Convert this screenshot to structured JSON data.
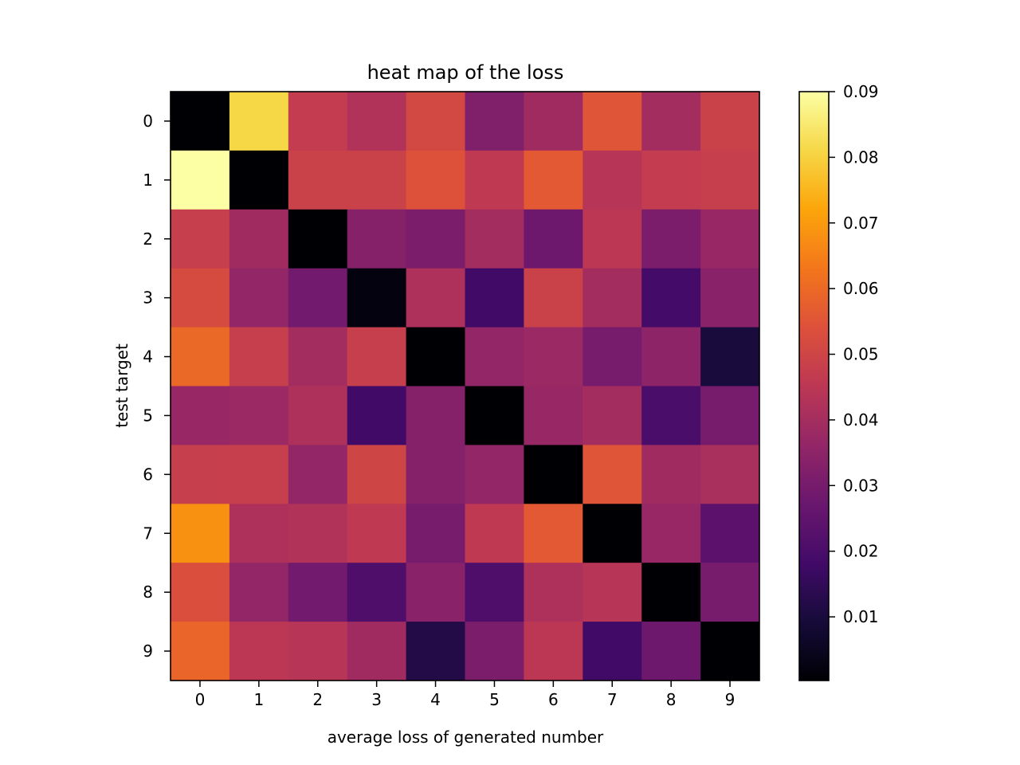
{
  "chart_data": {
    "type": "heatmap",
    "colormap": "inferno",
    "title": "heat map of the loss",
    "xlabel": "average loss of generated number",
    "ylabel": "test target",
    "x_categories": [
      "0",
      "1",
      "2",
      "3",
      "4",
      "5",
      "6",
      "7",
      "8",
      "9"
    ],
    "y_categories": [
      "0",
      "1",
      "2",
      "3",
      "4",
      "5",
      "6",
      "7",
      "8",
      "9"
    ],
    "color_range": [
      0.0003,
      0.09
    ],
    "colorbar_ticks": [
      0.01,
      0.02,
      0.03,
      0.04,
      0.05,
      0.06,
      0.07,
      0.08,
      0.09
    ],
    "colorbar_tick_labels": [
      "0.01",
      "0.02",
      "0.03",
      "0.04",
      "0.05",
      "0.06",
      "0.07",
      "0.08",
      "0.09"
    ],
    "matrix": [
      [
        0.0,
        0.081,
        0.047,
        0.043,
        0.051,
        0.032,
        0.039,
        0.055,
        0.04,
        0.049
      ],
      [
        0.09,
        0.0,
        0.049,
        0.049,
        0.054,
        0.046,
        0.056,
        0.044,
        0.047,
        0.048
      ],
      [
        0.048,
        0.039,
        0.0,
        0.033,
        0.031,
        0.04,
        0.028,
        0.045,
        0.031,
        0.037
      ],
      [
        0.052,
        0.036,
        0.029,
        0.002,
        0.042,
        0.018,
        0.049,
        0.04,
        0.019,
        0.034
      ],
      [
        0.06,
        0.048,
        0.04,
        0.048,
        0.0,
        0.036,
        0.038,
        0.03,
        0.035,
        0.01
      ],
      [
        0.037,
        0.038,
        0.042,
        0.018,
        0.033,
        0.0,
        0.037,
        0.04,
        0.02,
        0.03
      ],
      [
        0.048,
        0.048,
        0.036,
        0.05,
        0.033,
        0.036,
        0.0,
        0.055,
        0.039,
        0.041
      ],
      [
        0.068,
        0.042,
        0.043,
        0.046,
        0.03,
        0.046,
        0.056,
        0.0,
        0.037,
        0.024
      ],
      [
        0.053,
        0.036,
        0.029,
        0.021,
        0.034,
        0.021,
        0.042,
        0.044,
        0.0,
        0.03
      ],
      [
        0.059,
        0.045,
        0.044,
        0.039,
        0.012,
        0.031,
        0.045,
        0.018,
        0.028,
        0.0
      ]
    ]
  }
}
